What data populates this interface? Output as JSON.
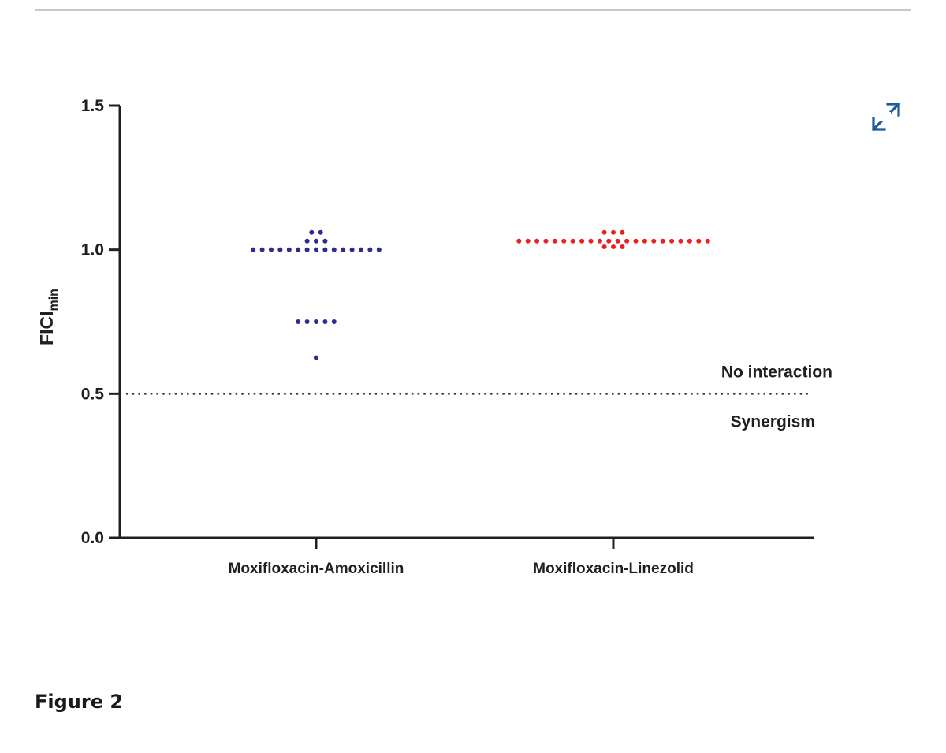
{
  "figure": {
    "caption": "Figure 2",
    "expand_icon": "expand-arrows-icon",
    "accent_color": "#1a5b9c"
  },
  "chart_data": {
    "type": "scatter",
    "categories": [
      "Moxifloxacin-Amoxicillin",
      "Moxifloxacin-Linezolid"
    ],
    "ylabel_main": "FICI",
    "ylabel_sub": "min",
    "ylim": [
      0,
      1.5
    ],
    "yticks": [
      "0.0",
      "0.5",
      "1.0",
      "1.5"
    ],
    "yticks_values": [
      0,
      0.5,
      1.0,
      1.5
    ],
    "grid": false,
    "threshold": {
      "y": 0.5,
      "label_above": "No interaction",
      "label_below": "Synergism"
    },
    "series": [
      {
        "color": "#2e2b8f",
        "values": [
          1.0,
          1.0,
          1.0,
          1.0,
          1.0,
          1.0,
          1.0,
          1.0,
          1.0,
          1.0,
          1.0,
          1.0,
          1.0,
          1.0,
          1.0,
          1.06,
          1.06,
          1.03,
          1.03,
          1.03,
          0.75,
          0.75,
          0.75,
          0.75,
          0.75,
          0.625
        ]
      },
      {
        "color": "#e8231f",
        "values": [
          1.03,
          1.03,
          1.03,
          1.03,
          1.03,
          1.03,
          1.03,
          1.03,
          1.03,
          1.03,
          1.03,
          1.03,
          1.03,
          1.03,
          1.03,
          1.03,
          1.03,
          1.03,
          1.03,
          1.03,
          1.03,
          1.03,
          1.01,
          1.01,
          1.01,
          1.06,
          1.06,
          1.06
        ]
      }
    ]
  }
}
